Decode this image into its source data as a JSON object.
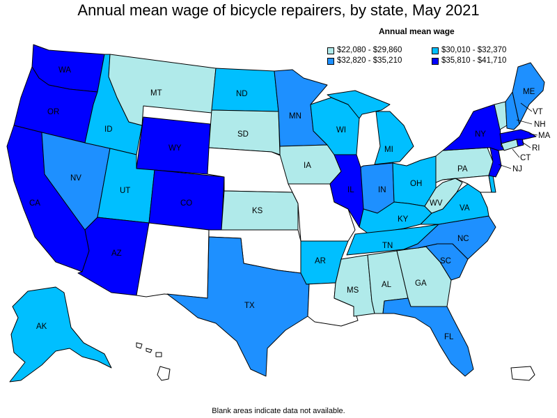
{
  "title": "Annual mean wage of bicycle repairers, by state, May 2021",
  "legend": {
    "title": "Annual mean wage",
    "items": [
      {
        "label": "$22,080 - $29,860",
        "color": "#b0eaea"
      },
      {
        "label": "$30,010 - $32,370",
        "color": "#00bfff"
      },
      {
        "label": "$32,820 - $35,210",
        "color": "#1e90ff"
      },
      {
        "label": "$35,810 - $41,710",
        "color": "#0000ff"
      }
    ]
  },
  "no_data_color": "#ffffff",
  "footnote": "Blank areas indicate data not available.",
  "states": {
    "WA": {
      "label": "WA",
      "tier": 3
    },
    "OR": {
      "label": "OR",
      "tier": 3
    },
    "CA": {
      "label": "CA",
      "tier": 3
    },
    "NV": {
      "label": "NV",
      "tier": 2
    },
    "ID": {
      "label": "ID",
      "tier": 1
    },
    "MT": {
      "label": "MT",
      "tier": 0
    },
    "WY": {
      "label": "WY",
      "tier": 3
    },
    "UT": {
      "label": "UT",
      "tier": 1
    },
    "AZ": {
      "label": "AZ",
      "tier": 3
    },
    "CO": {
      "label": "CO",
      "tier": 3
    },
    "NM": {
      "label": "",
      "tier": null
    },
    "ND": {
      "label": "ND",
      "tier": 1
    },
    "SD": {
      "label": "SD",
      "tier": 0
    },
    "NE": {
      "label": "",
      "tier": null
    },
    "KS": {
      "label": "KS",
      "tier": 0
    },
    "OK": {
      "label": "",
      "tier": null
    },
    "TX": {
      "label": "TX",
      "tier": 2
    },
    "MN": {
      "label": "MN",
      "tier": 2
    },
    "IA": {
      "label": "IA",
      "tier": 0
    },
    "MO": {
      "label": "",
      "tier": null
    },
    "AR": {
      "label": "AR",
      "tier": 1
    },
    "LA": {
      "label": "",
      "tier": null
    },
    "WI": {
      "label": "WI",
      "tier": 1
    },
    "IL": {
      "label": "IL",
      "tier": 3
    },
    "MI": {
      "label": "MI",
      "tier": 1
    },
    "IN": {
      "label": "IN",
      "tier": 2
    },
    "OH": {
      "label": "OH",
      "tier": 1
    },
    "KY": {
      "label": "KY",
      "tier": 1
    },
    "TN": {
      "label": "TN",
      "tier": 1
    },
    "MS": {
      "label": "MS",
      "tier": 0
    },
    "AL": {
      "label": "AL",
      "tier": 0
    },
    "GA": {
      "label": "GA",
      "tier": 0
    },
    "FL": {
      "label": "FL",
      "tier": 2
    },
    "SC": {
      "label": "SC",
      "tier": 2
    },
    "NC": {
      "label": "NC",
      "tier": 2
    },
    "VA": {
      "label": "VA",
      "tier": 1
    },
    "WV": {
      "label": "WV",
      "tier": 0
    },
    "PA": {
      "label": "PA",
      "tier": 0
    },
    "NY": {
      "label": "NY",
      "tier": 3
    },
    "NJ": {
      "label": "NJ",
      "tier": 3
    },
    "DE": {
      "label": "",
      "tier": 1
    },
    "MD": {
      "label": "",
      "tier": null
    },
    "CT": {
      "label": "CT",
      "tier": 0
    },
    "RI": {
      "label": "RI",
      "tier": 3
    },
    "MA": {
      "label": "MA",
      "tier": 3
    },
    "VT": {
      "label": "VT",
      "tier": 0
    },
    "NH": {
      "label": "NH",
      "tier": 2
    },
    "ME": {
      "label": "ME",
      "tier": 2
    },
    "AK": {
      "label": "AK",
      "tier": 1
    },
    "HI": {
      "label": "",
      "tier": null
    },
    "PR": {
      "label": "",
      "tier": null
    }
  }
}
